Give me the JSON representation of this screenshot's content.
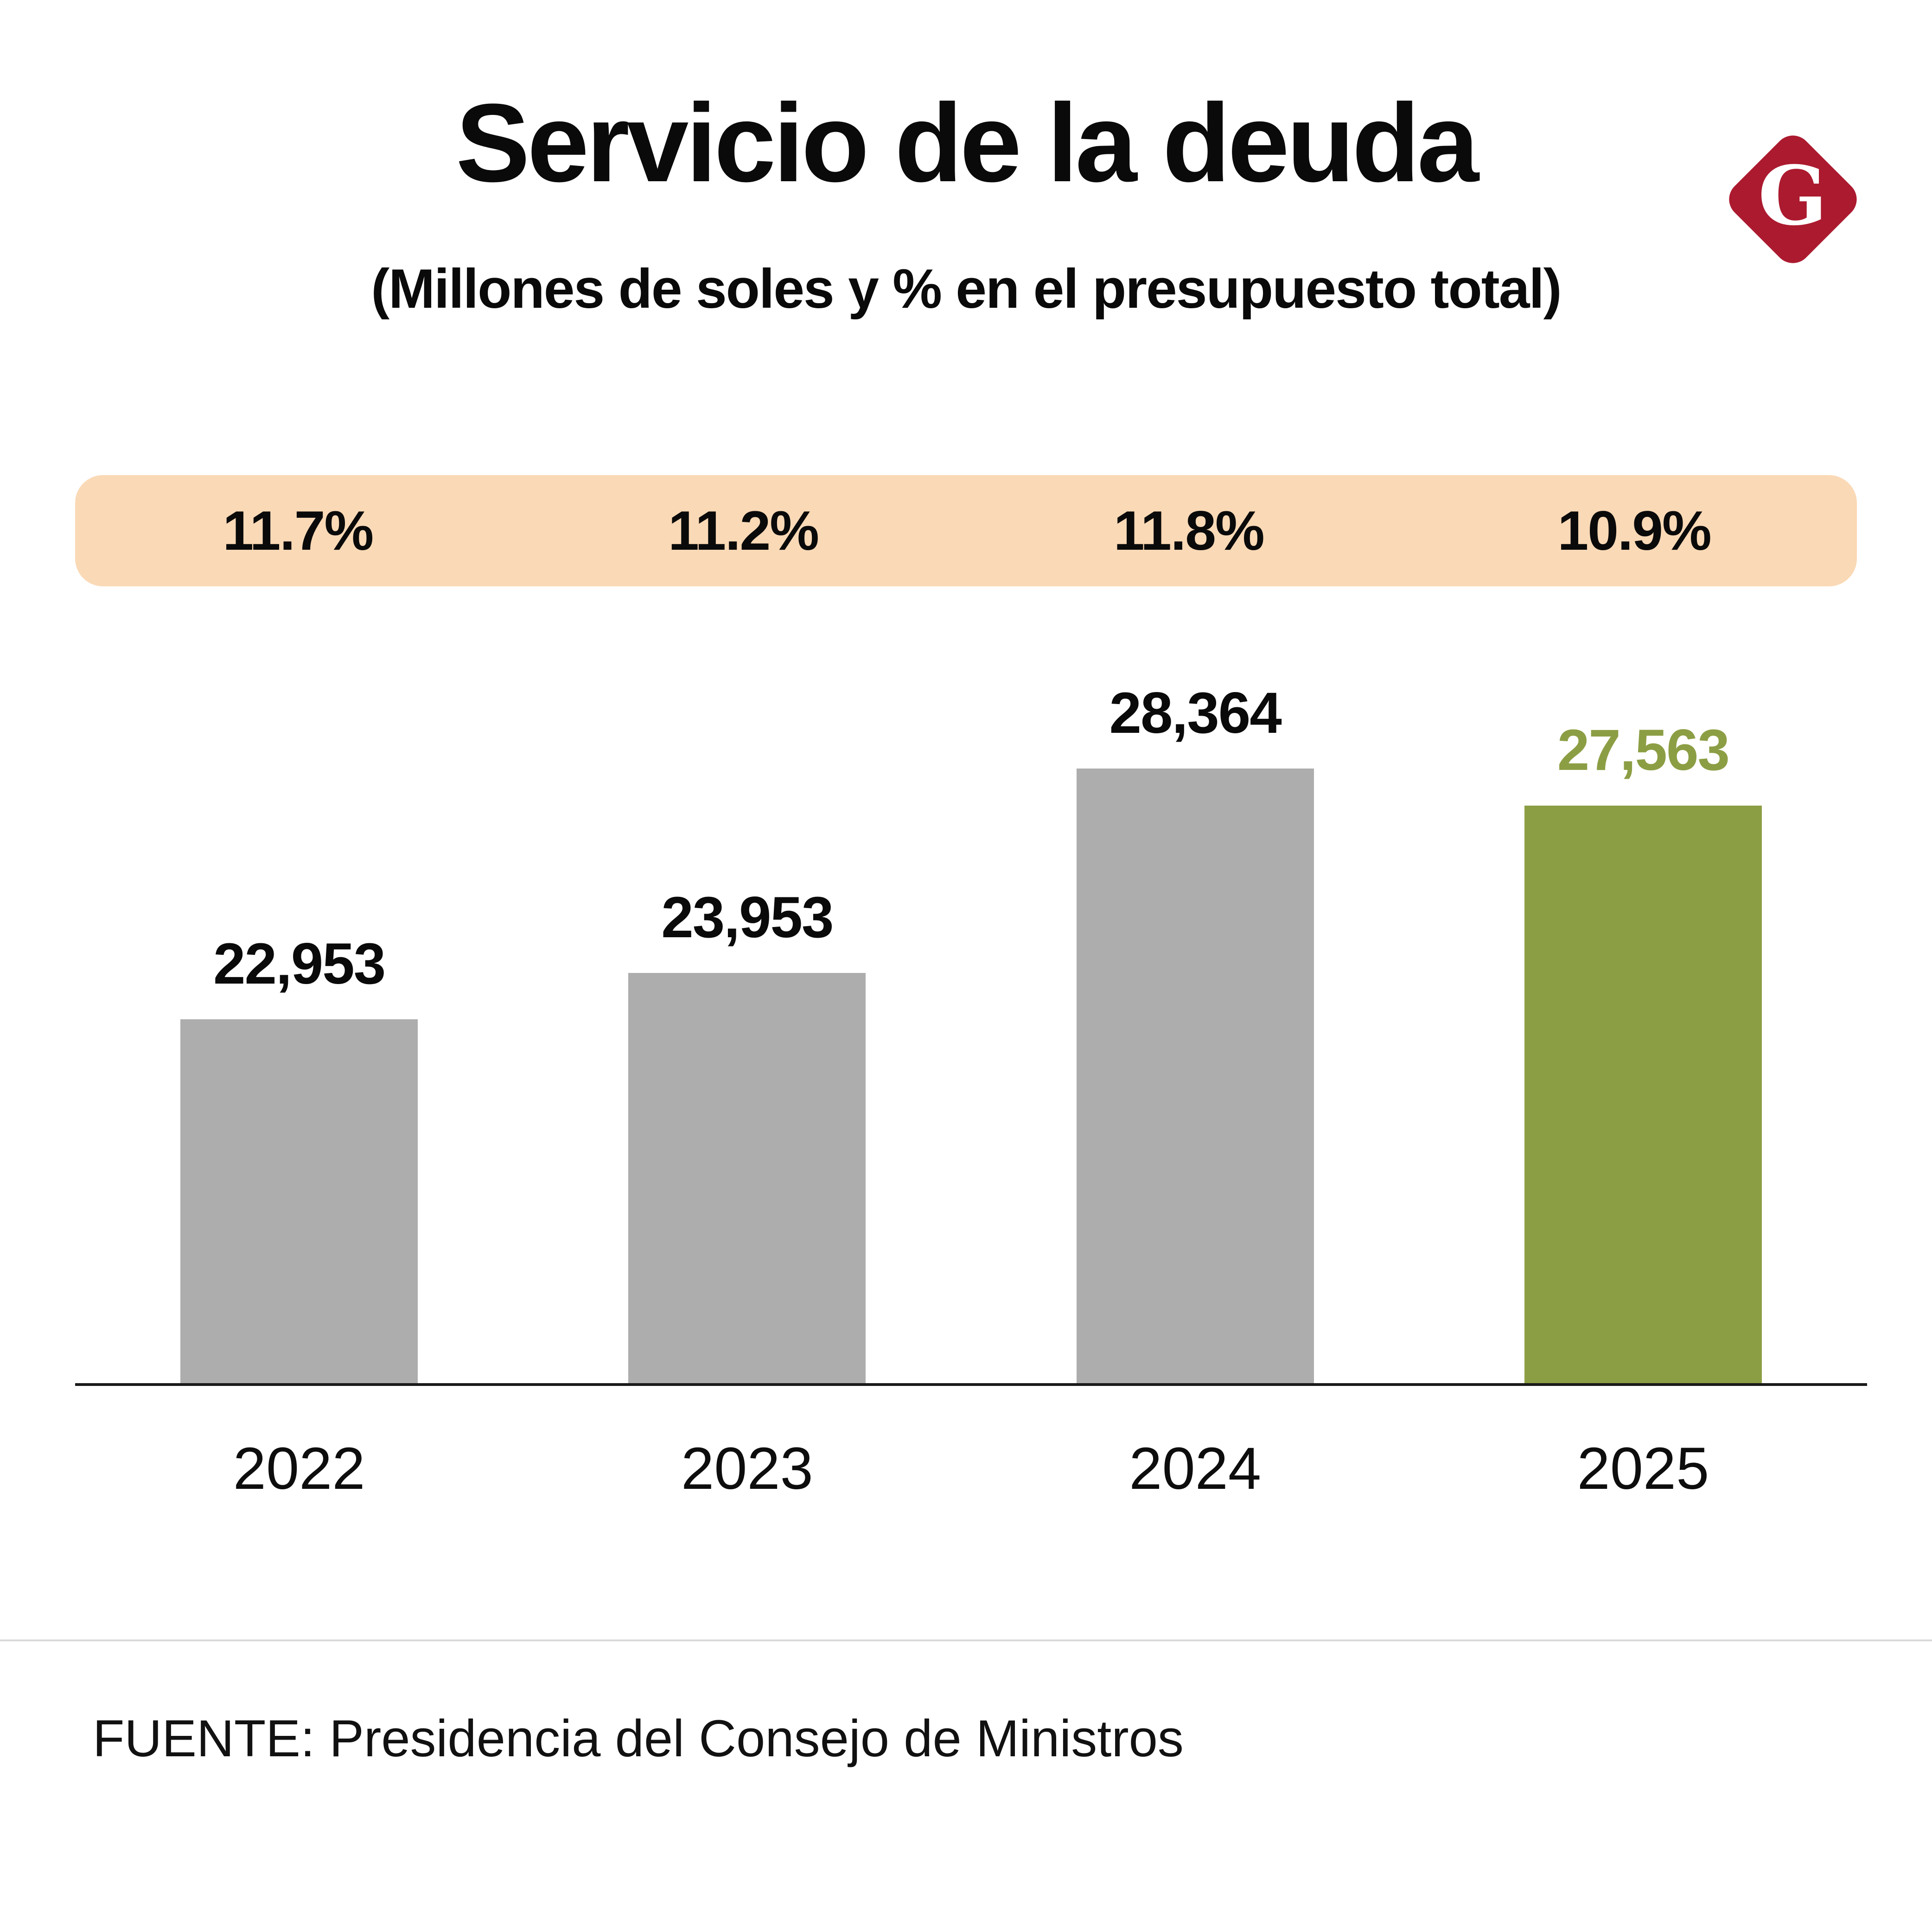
{
  "header": {
    "title": "Servicio de la deuda",
    "subtitle": "(Millones de soles y % en el presupuesto total)"
  },
  "logo": {
    "letter": "G",
    "color": "#AC1A2F"
  },
  "colors": {
    "band_background": "#FAD9B6",
    "bar_default": "#ADADAD",
    "bar_highlight": "#8C9E44",
    "value_label_highlight": "#8C9E44",
    "axis_line": "#1a1a1a"
  },
  "footer": {
    "source": "FUENTE: Presidencia del Consejo de Ministros"
  },
  "chart_data": {
    "type": "bar",
    "title": "Servicio de la deuda",
    "subtitle": "(Millones de soles y % en el presupuesto total)",
    "categories": [
      "2022",
      "2023",
      "2024",
      "2025"
    ],
    "values": [
      22953,
      23953,
      28364,
      27563
    ],
    "value_labels": [
      "22,953",
      "23,953",
      "28,364",
      "27,563"
    ],
    "percent_labels": [
      "11.7%",
      "11.2%",
      "11.8%",
      "10.9%"
    ],
    "highlight_index": 3,
    "ylim": [
      15100,
      28400
    ],
    "xlabel": "",
    "ylabel": "Millones de soles",
    "grid": false,
    "legend": "none"
  }
}
